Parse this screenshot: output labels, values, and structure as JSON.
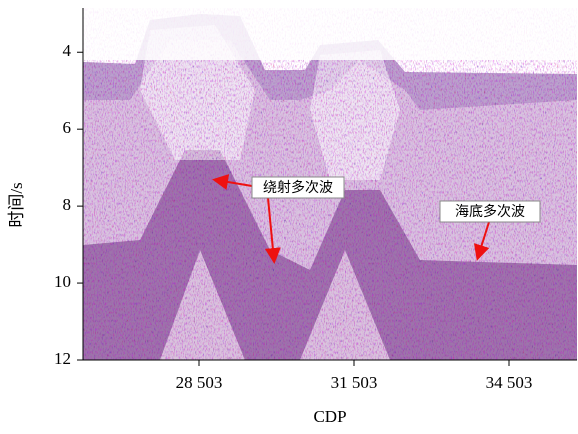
{
  "chart_data": {
    "type": "seismic-section",
    "xlabel": "CDP",
    "ylabel": "时间/s",
    "xlim": [
      26258,
      35819
    ],
    "ylim": [
      2.85,
      12
    ],
    "y_inverted": true,
    "xticks": [
      {
        "value": 28503,
        "label": "28 503"
      },
      {
        "value": 31503,
        "label": "31 503"
      },
      {
        "value": 34503,
        "label": "34 503"
      }
    ],
    "yticks": [
      4,
      6,
      8,
      10,
      12
    ],
    "annotations": [
      "绕射多次波",
      "海底多次波"
    ]
  }
}
